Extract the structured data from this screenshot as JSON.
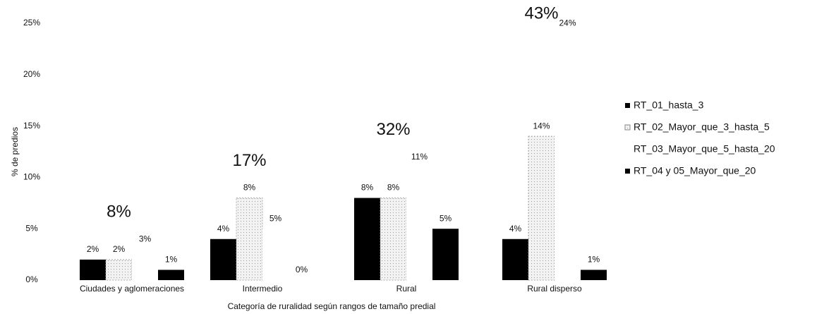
{
  "chart_data": {
    "type": "bar",
    "x_label": "Categoría de ruralidad según rangos de tamaño predial",
    "y_label": "% de predios",
    "categories": [
      "Ciudades y aglomeraciones",
      "Intermedio",
      "Rural",
      "Rural disperso"
    ],
    "series": [
      {
        "name": "RT_01_hasta_3",
        "color": "#000000",
        "values": [
          2,
          4,
          8,
          4
        ],
        "value_labels": [
          "2%",
          "4%",
          "8%",
          "4%"
        ]
      },
      {
        "name": "RT_02_Mayor_que_3_hasta_5",
        "color": "#e6e6e6",
        "values": [
          2,
          8,
          8,
          14
        ],
        "value_labels": [
          "2%",
          "8%",
          "8%",
          "14%"
        ]
      },
      {
        "name": "RT_03_Mayor_que_5_hasta_20",
        "color": "#ffffff",
        "values": [
          3,
          5,
          11,
          24
        ],
        "value_labels": [
          "3%",
          "5%",
          "11%",
          "24%"
        ]
      },
      {
        "name": "RT_04 y 05_Mayor_que_20",
        "color": "#000000",
        "values": [
          1,
          0,
          5,
          1
        ],
        "value_labels": [
          "1%",
          "0%",
          "5%",
          "1%"
        ]
      }
    ],
    "totals": {
      "values": [
        8,
        17,
        32,
        43
      ],
      "value_labels": [
        "8%",
        "17%",
        "32%",
        "43%"
      ]
    },
    "ylim": [
      0,
      25
    ],
    "yticks": [
      {
        "value": 0,
        "label": "0%"
      },
      {
        "value": 5,
        "label": "5%"
      },
      {
        "value": 10,
        "label": "10%"
      },
      {
        "value": 15,
        "label": "15%"
      },
      {
        "value": 20,
        "label": "20%"
      },
      {
        "value": 25,
        "label": "25%"
      }
    ],
    "grid": false,
    "legend": "right"
  }
}
